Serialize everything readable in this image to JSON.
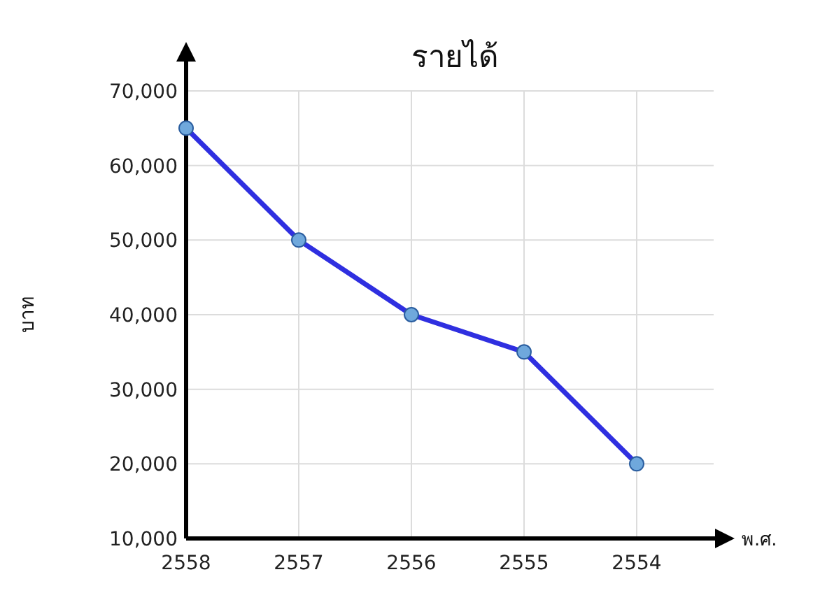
{
  "chart_data": {
    "type": "line",
    "title": "รายได้",
    "xlabel": "พ.ศ.",
    "ylabel": "บาท",
    "categories": [
      "2558",
      "2557",
      "2556",
      "2555",
      "2554"
    ],
    "series": [
      {
        "color": "#2f2fe0",
        "values": [
          65000,
          50000,
          40000,
          35000,
          20000
        ]
      }
    ],
    "ylim": [
      10000,
      70000
    ],
    "yticks": [
      {
        "value": 10000,
        "label": "10,000"
      },
      {
        "value": 20000,
        "label": "20,000"
      },
      {
        "value": 30000,
        "label": "30,000"
      },
      {
        "value": 40000,
        "label": "40,000"
      },
      {
        "value": 50000,
        "label": "50,000"
      },
      {
        "value": 60000,
        "label": "60,000"
      },
      {
        "value": 70000,
        "label": "70,000"
      }
    ],
    "grid": true,
    "marker": "circle",
    "line_style": "solid"
  }
}
